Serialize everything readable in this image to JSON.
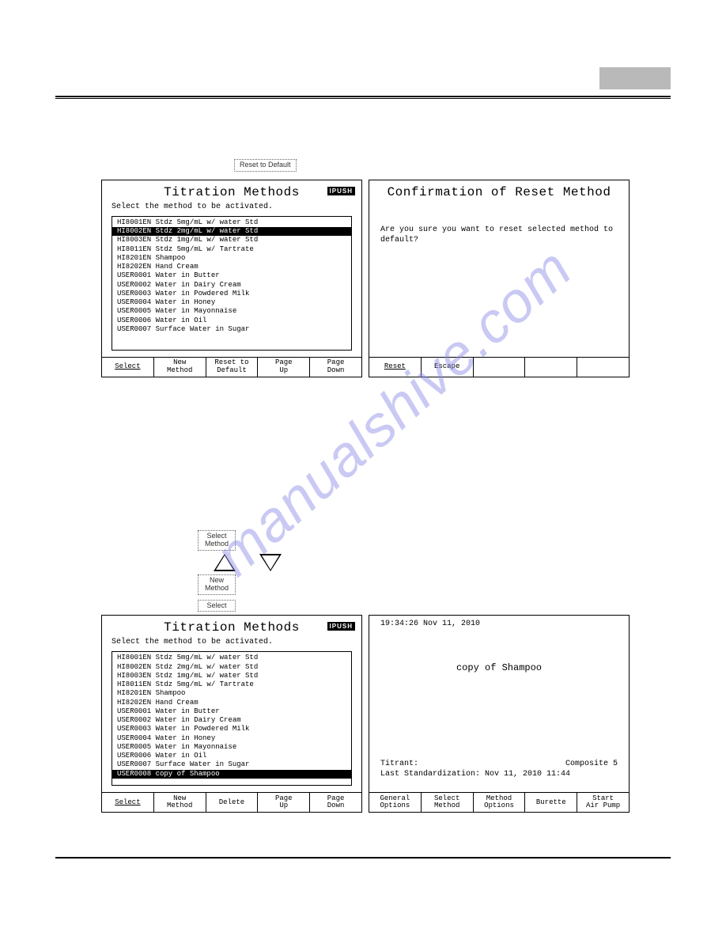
{
  "watermark": "manualshive.com",
  "buttons": {
    "reset_to_default": "Reset to\nDefault",
    "select_method": "Select\nMethod",
    "new_method": "New\nMethod",
    "select": "Select"
  },
  "panel_a": {
    "title": "Titration Methods",
    "badge": "IPUSH",
    "subtitle": "Select the method to be activated.",
    "items": [
      {
        "t": "HI8001EN Stdz 5mg/mL w/ water Std",
        "sel": false
      },
      {
        "t": "HI8002EN Stdz 2mg/mL w/ water Std",
        "sel": true
      },
      {
        "t": "HI8003EN Stdz 1mg/mL w/ water Std",
        "sel": false
      },
      {
        "t": "HI8011EN Stdz 5mg/mL w/ Tartrate",
        "sel": false
      },
      {
        "t": "HI8201EN Shampoo",
        "sel": false
      },
      {
        "t": "HI8202EN Hand Cream",
        "sel": false
      },
      {
        "t": "USER0001 Water in Butter",
        "sel": false
      },
      {
        "t": "USER0002 Water in Dairy Cream",
        "sel": false
      },
      {
        "t": "USER0003 Water in Powdered Milk",
        "sel": false
      },
      {
        "t": "USER0004 Water in Honey",
        "sel": false
      },
      {
        "t": "USER0005 Water in Mayonnaise",
        "sel": false
      },
      {
        "t": "USER0006 Water in Oil",
        "sel": false
      },
      {
        "t": "USER0007 Surface Water in Sugar",
        "sel": false
      }
    ],
    "softkeys": [
      "Select",
      "New\nMethod",
      "Reset to\nDefault",
      "Page\nUp",
      "Page\nDown"
    ]
  },
  "panel_b": {
    "title": "Confirmation of Reset Method",
    "body": "Are you sure you want to reset selected method to default?",
    "softkeys": [
      "Reset",
      "Escape",
      "",
      "",
      ""
    ]
  },
  "panel_c": {
    "title": "Titration Methods",
    "badge": "IPUSH",
    "subtitle": "Select the method to be activated.",
    "items": [
      {
        "t": "HI8001EN Stdz 5mg/mL w/ water Std",
        "sel": false
      },
      {
        "t": "HI8002EN Stdz 2mg/mL w/ water Std",
        "sel": false
      },
      {
        "t": "HI8003EN Stdz 1mg/mL w/ water Std",
        "sel": false
      },
      {
        "t": "HI8011EN Stdz 5mg/mL w/ Tartrate",
        "sel": false
      },
      {
        "t": "HI8201EN Shampoo",
        "sel": false
      },
      {
        "t": "HI8202EN Hand Cream",
        "sel": false
      },
      {
        "t": "USER0001 Water in Butter",
        "sel": false
      },
      {
        "t": "USER0002 Water in Dairy Cream",
        "sel": false
      },
      {
        "t": "USER0003 Water in Powdered Milk",
        "sel": false
      },
      {
        "t": "USER0004 Water in Honey",
        "sel": false
      },
      {
        "t": "USER0005 Water in Mayonnaise",
        "sel": false
      },
      {
        "t": "USER0006 Water in Oil",
        "sel": false
      },
      {
        "t": "USER0007 Surface Water in Sugar",
        "sel": false
      },
      {
        "t": "USER0008 copy of Shampoo",
        "sel": true
      }
    ],
    "softkeys": [
      "Select",
      "New\nMethod",
      "Delete",
      "Page\nUp",
      "Page\nDown"
    ]
  },
  "panel_d": {
    "timestamp": "19:34:26 Nov 11, 2010",
    "method_name": "copy of Shampoo",
    "titrant_label": "Titrant:",
    "titrant_value": "Composite 5",
    "last_std": "Last Standardization: Nov 11, 2010 11:44",
    "softkeys": [
      "General\nOptions",
      "Select\nMethod",
      "Method\nOptions",
      "Burette",
      "Start\nAir Pump"
    ]
  }
}
